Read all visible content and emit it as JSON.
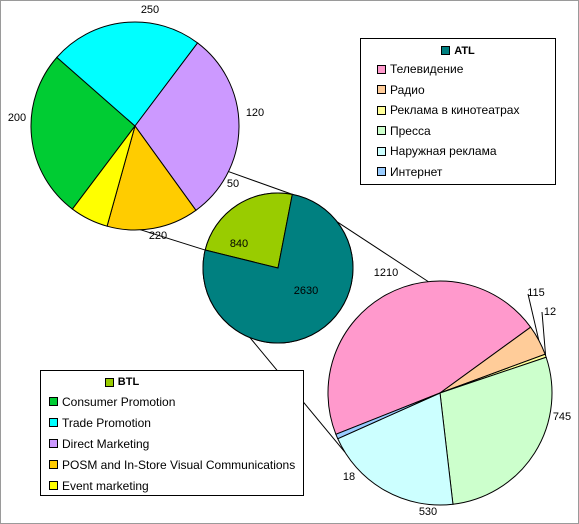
{
  "chart_data": [
    {
      "type": "pie",
      "role": "main",
      "categories": [
        "BTL",
        "ATL"
      ],
      "values": [
        840,
        2630
      ],
      "colors": [
        "#99cc00",
        "#008080"
      ]
    },
    {
      "type": "pie",
      "role": "btl-breakdown",
      "categories": [
        "Consumer Promotion",
        "Trade Promotion",
        "Direct Marketing",
        "POSM and In-Store Visual Communications",
        "Event marketing"
      ],
      "values": [
        220,
        200,
        250,
        120,
        50
      ],
      "colors": [
        "#00cc33",
        "#00ffff",
        "#cc99ff",
        "#ffcc00",
        "#ffff00"
      ]
    },
    {
      "type": "pie",
      "role": "atl-breakdown",
      "categories": [
        "Телевидение",
        "Радио",
        "Реклама в кинотеатрах",
        "Пресса",
        "Наружная реклама",
        "Интернет"
      ],
      "values": [
        1210,
        115,
        12,
        745,
        530,
        18
      ],
      "colors": [
        "#ff99cc",
        "#ffcc99",
        "#ffff99",
        "#ccffcc",
        "#ccffff",
        "#99ccff"
      ]
    }
  ],
  "legends": {
    "atl": {
      "title": "ATL",
      "title_color": "#008080",
      "items": [
        "Телевидение",
        "Радио",
        "Реклама в кинотеатрах",
        "Пресса",
        "Наружная реклама",
        "Интернет"
      ]
    },
    "btl": {
      "title": "BTL",
      "title_color": "#99cc00",
      "items": [
        "Consumer Promotion",
        "Trade Promotion",
        "Direct Marketing",
        "POSM and In-Store Visual Communications",
        "Event marketing"
      ]
    }
  }
}
